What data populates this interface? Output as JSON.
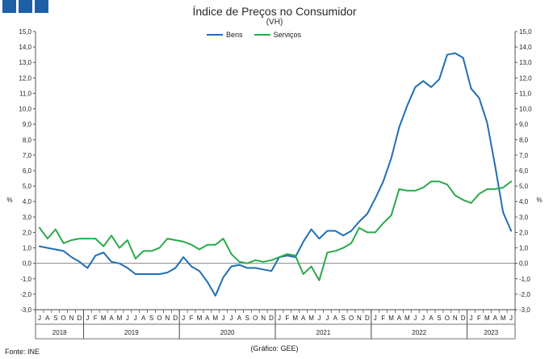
{
  "header": {
    "title": "Índice de Preços no Consumidor",
    "subtitle": "(VH)"
  },
  "footer": {
    "source": "Fonte: INE",
    "credit": "(Gráfico: GEE)"
  },
  "colors": {
    "bens": "#1f6fb5",
    "servicos": "#2aaa4a",
    "logo": "#1f5fa8"
  },
  "chart_data": {
    "type": "line",
    "title": "Índice de Preços no Consumidor",
    "subtitle": "(VH)",
    "ylabel_left": "%",
    "ylabel_right": "%",
    "ylim": [
      -3.0,
      15.0
    ],
    "yticks": [
      "-3,0",
      "-2,0",
      "-1,0",
      "0,0",
      "1,0",
      "2,0",
      "3,0",
      "4,0",
      "5,0",
      "6,0",
      "7,0",
      "8,0",
      "9,0",
      "10,0",
      "11,0",
      "12,0",
      "13,0",
      "14,0",
      "15,0"
    ],
    "legend_position": "top-center",
    "grid": false,
    "x": [
      "J",
      "A",
      "S",
      "O",
      "N",
      "D",
      "J",
      "F",
      "M",
      "A",
      "M",
      "J",
      "J",
      "A",
      "S",
      "O",
      "N",
      "D",
      "J",
      "F",
      "M",
      "A",
      "M",
      "J",
      "J",
      "A",
      "S",
      "O",
      "N",
      "D",
      "J",
      "F",
      "M",
      "A",
      "M",
      "J",
      "J",
      "A",
      "S",
      "O",
      "N",
      "D",
      "J",
      "F",
      "M",
      "A",
      "M",
      "J",
      "J",
      "A",
      "S",
      "O",
      "N",
      "D",
      "J",
      "F",
      "M",
      "A",
      "M",
      "J"
    ],
    "years": [
      {
        "label": "2018",
        "start": 0,
        "end": 6
      },
      {
        "label": "2019",
        "start": 6,
        "end": 18
      },
      {
        "label": "2020",
        "start": 18,
        "end": 30
      },
      {
        "label": "2021",
        "start": 30,
        "end": 42
      },
      {
        "label": "2022",
        "start": 42,
        "end": 54
      },
      {
        "label": "2023",
        "start": 54,
        "end": 60
      }
    ],
    "series": [
      {
        "name": "Bens",
        "values": [
          1.1,
          1.0,
          0.9,
          0.8,
          0.4,
          0.1,
          -0.3,
          0.5,
          0.7,
          0.1,
          0.0,
          -0.3,
          -0.7,
          -0.7,
          -0.7,
          -0.7,
          -0.6,
          -0.3,
          0.4,
          -0.2,
          -0.5,
          -1.2,
          -2.1,
          -0.9,
          -0.2,
          -0.1,
          -0.3,
          -0.3,
          -0.4,
          -0.5,
          0.4,
          0.5,
          0.4,
          1.4,
          2.2,
          1.6,
          2.1,
          2.1,
          1.8,
          2.1,
          2.7,
          3.2,
          4.2,
          5.3,
          6.8,
          8.8,
          10.2,
          11.4,
          11.8,
          11.4,
          11.9,
          13.5,
          13.6,
          13.3,
          11.3,
          10.7,
          9.1,
          6.3,
          3.3,
          2.1
        ]
      },
      {
        "name": "Serviços",
        "values": [
          2.3,
          1.6,
          2.2,
          1.3,
          1.5,
          1.6,
          1.6,
          1.6,
          1.1,
          1.8,
          1.0,
          1.5,
          0.3,
          0.8,
          0.8,
          1.0,
          1.6,
          1.5,
          1.4,
          1.2,
          0.9,
          1.2,
          1.2,
          1.6,
          0.6,
          0.1,
          0.0,
          0.2,
          0.1,
          0.2,
          0.4,
          0.6,
          0.5,
          -0.7,
          -0.2,
          -1.1,
          0.7,
          0.8,
          1.0,
          1.3,
          2.3,
          2.0,
          2.0,
          2.6,
          3.1,
          4.8,
          4.7,
          4.7,
          4.9,
          5.3,
          5.3,
          5.1,
          4.4,
          4.1,
          3.9,
          4.5,
          4.8,
          4.8,
          4.9,
          5.3
        ]
      }
    ]
  }
}
